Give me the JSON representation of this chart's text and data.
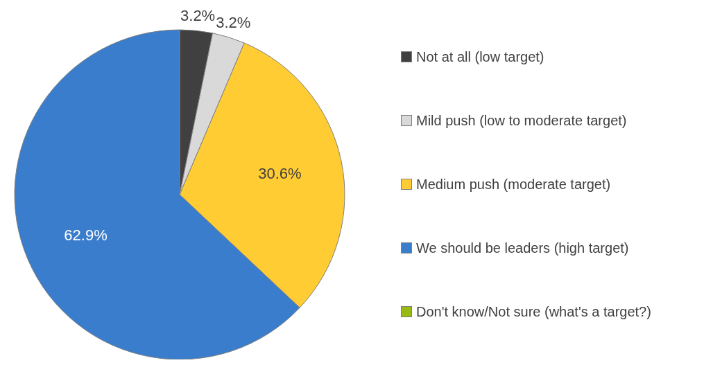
{
  "chart_data": {
    "type": "pie",
    "categories": [
      "Not at all (low target)",
      "Mild push (low to moderate target)",
      "Medium push (moderate target)",
      "We should be leaders (high target)",
      "Don't know/Not sure (what's a target?)"
    ],
    "values": [
      3.2,
      3.2,
      30.6,
      62.9,
      0
    ],
    "colors": [
      "#404040",
      "#d9d9d9",
      "#ffcc33",
      "#3a7dcc",
      "#99bb11"
    ],
    "value_labels": [
      "3.2%",
      "3.2%",
      "30.6%",
      "62.9%",
      null
    ],
    "legend": "right"
  }
}
